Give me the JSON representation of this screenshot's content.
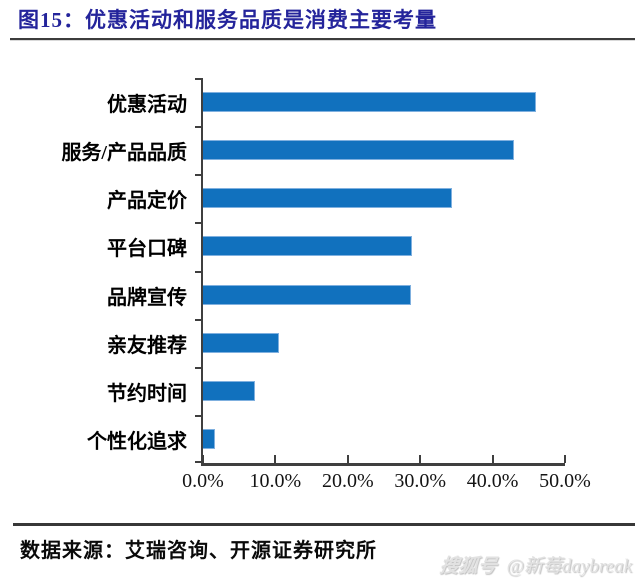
{
  "header": {
    "title": "图15：优惠活动和服务品质是消费主要考量"
  },
  "chart_data": {
    "type": "bar",
    "orientation": "horizontal",
    "title": "图15：优惠活动和服务品质是消费主要考量",
    "categories": [
      "优惠活动",
      "服务/产品品质",
      "产品定价",
      "平台口碑",
      "品牌宣传",
      "亲友推荐",
      "节约时间",
      "个性化追求"
    ],
    "values": [
      46.0,
      43.0,
      34.4,
      28.9,
      28.7,
      10.5,
      7.2,
      1.7
    ],
    "unit": "%",
    "xlabel": "",
    "ylabel": "",
    "xlim": [
      0,
      50
    ],
    "x_tick_values": [
      0,
      10,
      20,
      30,
      40,
      50
    ],
    "x_tick_labels": [
      "0.0%",
      "10.0%",
      "20.0%",
      "30.0%",
      "40.0%",
      "50.0%"
    ],
    "grid": false,
    "legend": false,
    "bar_color": "#1171BE",
    "bar_edge_color": "#7FB0DF",
    "axis_color": "#3F3F3F"
  },
  "footer": {
    "source": "数据来源：艾瑞咨询、开源证券研究所"
  },
  "watermark": {
    "logo": "搜狐号",
    "account": "@新莓daybreak"
  },
  "colors": {
    "title": "#24249B",
    "rule": "#3C3C3C",
    "bar": "#1171BE",
    "axis": "#3F3F3F"
  }
}
